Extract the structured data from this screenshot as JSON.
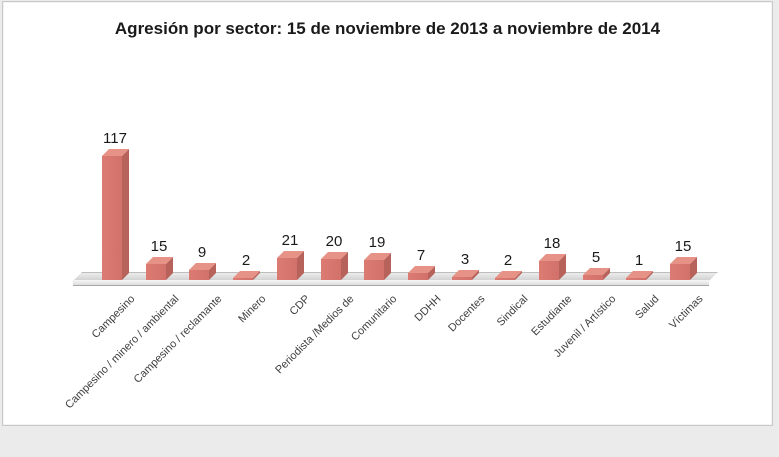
{
  "chart_data": {
    "type": "bar",
    "style": "3d-bar",
    "title": "Agresión por sector: 15 de noviembre de 2013 a noviembre de 2014",
    "categories": [
      "Campesino",
      "Campesino / minero / ambiental",
      "Campesino / reclamante",
      "Minero",
      "CDP",
      "Periodista /Medios de",
      "Comunitario",
      "DDHH",
      "Docentes",
      "Sindical",
      "Estudiante",
      "Juvenil / Artístico",
      "Salud",
      "Víctimas"
    ],
    "values": [
      117,
      15,
      9,
      2,
      21,
      20,
      19,
      7,
      3,
      2,
      18,
      5,
      1,
      15
    ],
    "xlabel": "",
    "ylabel": "",
    "ylim": [
      0,
      117
    ],
    "grid": false,
    "legend": false,
    "data_labels": true,
    "colors": {
      "bar_front": "#d8756c",
      "bar_top": "#e69287",
      "bar_side": "#b7625a",
      "floor": "#d9d9d9",
      "title_text": "#1a1a1a",
      "value_label_text": "#1a1a1a",
      "category_label_text": "#404040",
      "panel_background": "#ffffff",
      "panel_border": "#c9c9c9",
      "page_background": "#ebebeb"
    }
  }
}
